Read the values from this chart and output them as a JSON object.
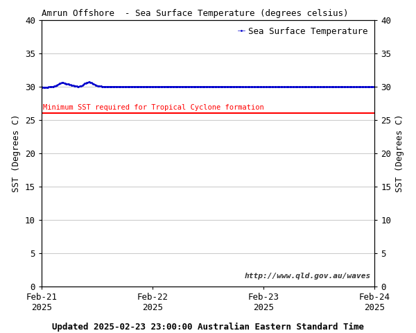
{
  "title": "Amrun Offshore  - Sea Surface Temperature (degrees celsius)",
  "ylabel": "SST (Degrees C)",
  "xlabel_bottom": "Updated 2025-02-23 23:00:00 Australian Eastern Standard Time",
  "watermark": "http://www.qld.gov.au/waves",
  "legend_label": "Sea Surface Temperature",
  "cyclone_label": "Minimum SST required for Tropical Cyclone formation",
  "cyclone_threshold": 26,
  "ylim": [
    0,
    40
  ],
  "yticks": [
    0,
    5,
    10,
    15,
    20,
    25,
    30,
    35,
    40
  ],
  "line_color": "#0000cc",
  "cyclone_color": "#ff0000",
  "bg_color": "#ffffff",
  "grid_color": "#cccccc",
  "xtick_positions": [
    0,
    1,
    2,
    3
  ],
  "xtick_labels": [
    "Feb-21\n2025",
    "Feb-22\n2025",
    "Feb-23\n2025",
    "Feb-24\n2025"
  ],
  "sst_data": [
    29.95,
    29.92,
    29.9,
    29.9,
    29.91,
    29.9,
    29.9,
    29.92,
    29.93,
    29.95,
    29.97,
    29.99,
    30.0,
    30.02,
    30.05,
    30.1,
    30.15,
    30.2,
    30.3,
    30.4,
    30.5,
    30.55,
    30.58,
    30.6,
    30.58,
    30.52,
    30.48,
    30.44,
    30.42,
    30.38,
    30.35,
    30.3,
    30.25,
    30.2,
    30.18,
    30.15,
    30.12,
    30.1,
    30.08,
    30.05,
    30.03,
    30.02,
    30.05,
    30.08,
    30.12,
    30.18,
    30.25,
    30.35,
    30.45,
    30.55,
    30.62,
    30.65,
    30.68,
    30.7,
    30.65,
    30.58,
    30.5,
    30.42,
    30.35,
    30.28,
    30.2,
    30.15,
    30.1,
    30.08,
    30.06,
    30.05,
    30.04,
    30.03,
    30.02,
    30.02,
    30.01,
    30.0,
    30.0,
    30.0,
    29.99,
    29.99,
    30.0,
    30.0,
    30.01,
    30.01,
    30.01,
    30.02,
    30.01,
    30.01,
    30.0,
    30.0,
    29.99,
    29.99,
    29.98,
    29.98,
    29.98,
    29.98,
    29.98,
    29.98,
    29.98,
    29.98,
    29.99,
    29.99,
    29.99,
    30.0,
    30.0,
    30.0,
    30.0,
    30.0,
    30.0,
    30.0,
    30.0,
    30.0,
    30.0,
    30.0,
    30.0,
    30.0,
    30.0,
    30.0,
    30.0,
    30.0,
    30.0,
    30.0,
    30.0,
    30.0,
    30.0,
    30.0,
    30.01,
    30.01,
    30.0,
    30.0,
    29.99,
    29.99,
    29.99,
    29.99,
    29.98,
    29.98,
    29.99,
    30.0,
    30.0,
    30.0,
    30.0,
    30.01,
    30.01,
    30.02,
    30.02,
    30.02,
    30.02,
    30.02,
    30.02,
    30.01,
    30.01,
    30.01,
    30.01,
    30.01,
    30.01,
    30.01,
    30.0,
    30.0,
    30.0,
    30.0,
    30.0,
    30.0,
    30.0,
    30.0,
    30.0,
    30.0,
    30.0,
    30.0,
    30.0,
    30.0,
    30.0,
    30.0,
    30.0,
    30.0,
    30.0,
    30.0,
    30.0,
    30.0,
    30.0,
    30.0,
    30.0,
    30.0,
    30.0,
    30.0,
    30.0,
    30.0,
    30.0,
    30.0,
    30.0,
    30.0,
    30.0,
    30.0,
    30.0,
    30.0,
    30.0,
    30.0,
    30.0,
    30.0,
    30.0,
    30.0,
    30.0,
    30.0,
    30.0,
    30.0,
    30.0,
    30.0,
    30.0,
    30.0,
    30.0,
    30.0,
    30.0,
    30.0,
    30.0,
    30.0,
    30.0,
    30.0,
    30.0,
    30.0,
    30.0,
    30.0,
    30.0,
    30.0,
    30.0,
    30.0,
    29.99,
    29.98,
    29.97,
    29.96,
    29.95,
    29.95,
    29.95,
    29.95,
    29.95,
    29.95,
    29.95,
    29.95,
    29.95,
    29.95,
    29.95,
    29.95,
    29.95,
    29.95,
    29.95,
    29.95,
    29.95,
    29.95,
    29.95,
    29.95,
    29.95,
    29.95,
    29.95,
    29.95,
    29.95,
    29.95,
    29.95,
    29.95,
    29.95,
    29.95,
    29.95,
    29.95,
    29.95,
    29.95,
    29.95,
    29.95,
    29.95,
    29.95,
    29.95,
    29.95,
    29.95,
    29.95,
    29.95,
    29.95,
    29.95,
    29.95,
    29.95,
    29.95,
    29.95,
    29.95,
    29.95,
    29.95,
    29.95,
    29.95,
    29.95,
    29.95,
    29.95,
    29.95,
    29.95,
    29.95,
    29.95,
    29.95,
    29.95,
    29.95,
    29.95,
    29.95,
    29.95,
    29.95,
    29.95,
    29.95,
    29.95,
    29.95,
    29.95,
    29.95,
    29.95,
    29.95,
    29.95,
    29.95,
    29.95,
    29.95,
    29.95,
    29.95,
    29.95,
    29.95,
    29.95,
    29.95,
    29.95,
    29.95,
    29.95,
    29.95,
    29.95,
    29.95,
    29.95,
    29.95,
    29.95,
    29.95,
    29.95,
    29.95,
    29.95,
    29.95,
    29.95,
    29.95,
    29.95,
    29.95,
    29.95,
    29.95,
    29.95,
    29.95,
    29.95,
    29.95,
    29.95,
    29.95,
    29.95,
    29.95,
    29.95,
    29.95,
    29.95,
    29.95,
    29.95,
    29.95,
    29.95,
    29.95,
    29.95,
    29.95,
    29.95,
    29.95,
    29.95,
    29.95,
    29.95,
    29.95,
    29.95,
    29.95,
    29.95,
    29.95,
    29.95,
    29.95,
    29.95,
    29.95,
    29.95,
    29.95,
    29.95,
    29.95,
    29.95,
    29.95,
    29.95,
    29.95
  ]
}
